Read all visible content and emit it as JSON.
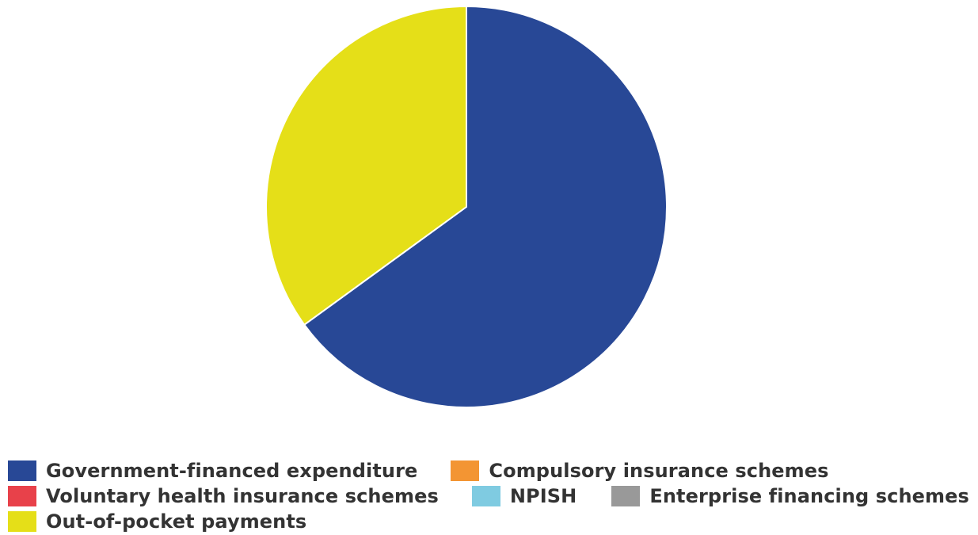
{
  "chart_data": {
    "type": "pie",
    "title": "",
    "slices": [
      {
        "name": "Government-financed expenditure",
        "value": 65,
        "color": "#284896"
      },
      {
        "name": "Compulsory insurance schemes",
        "value": 0,
        "color": "#f39533"
      },
      {
        "name": "Voluntary health insurance schemes",
        "value": 0,
        "color": "#e8414a"
      },
      {
        "name": "NPISH",
        "value": 0,
        "color": "#7fcbe1"
      },
      {
        "name": "Enterprise financing schemes",
        "value": 0,
        "color": "#999999"
      },
      {
        "name": "Out-of-pocket payments",
        "value": 35,
        "color": "#e5df18"
      }
    ],
    "legend_position": "bottom",
    "legend": [
      {
        "label": "Government-financed expenditure",
        "color": "#284896"
      },
      {
        "label": "Compulsory insurance schemes",
        "color": "#f39533"
      },
      {
        "label": "Voluntary health insurance schemes",
        "color": "#e8414a"
      },
      {
        "label": "NPISH",
        "color": "#7fcbe1"
      },
      {
        "label": "Enterprise financing schemes",
        "color": "#999999"
      },
      {
        "label": "Out-of-pocket payments",
        "color": "#e5df18"
      }
    ]
  }
}
